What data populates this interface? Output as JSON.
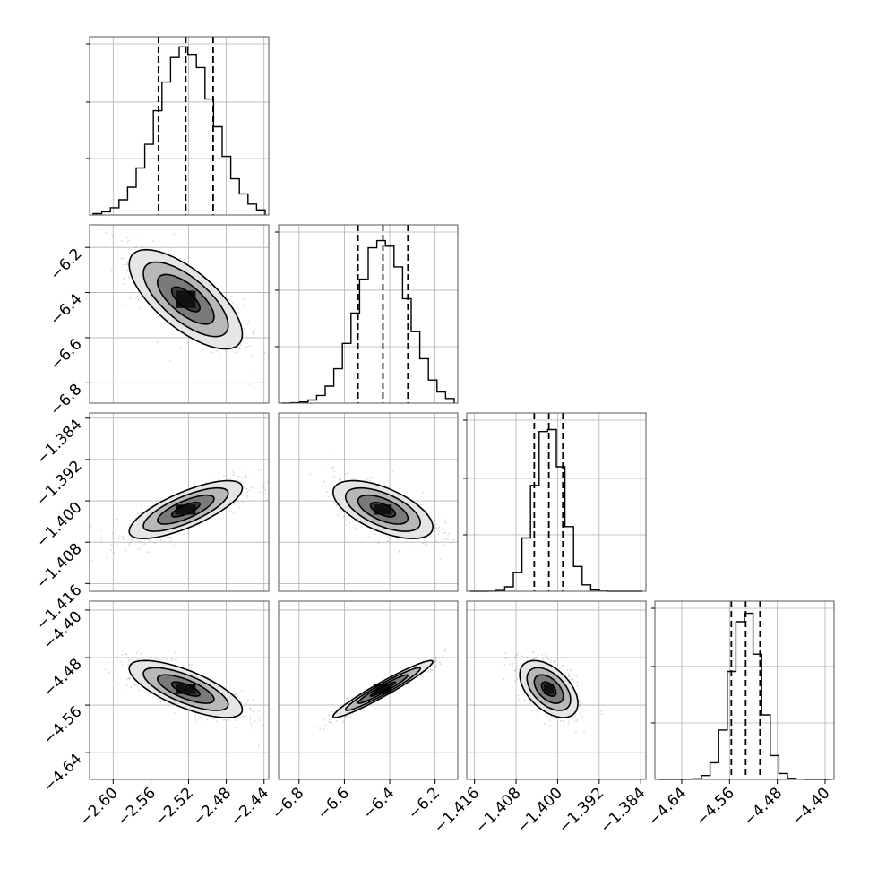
{
  "chart_data": {
    "type": "corner",
    "grid": true,
    "parameters": [
      {
        "index": 0,
        "mean": -2.523,
        "sigma": 0.03,
        "range": [
          -2.625,
          -2.435
        ],
        "ticks": [
          -2.6,
          -2.56,
          -2.52,
          -2.48,
          -2.44
        ],
        "tick_labels": [
          "−2.60",
          "−2.56",
          "−2.52",
          "−2.48",
          "−2.44"
        ],
        "quantiles": [
          -2.552,
          -2.523,
          -2.494
        ]
      },
      {
        "index": 1,
        "mean": -6.43,
        "sigma": 0.11,
        "range": [
          -6.89,
          -6.1
        ],
        "ticks": [
          -6.8,
          -6.6,
          -6.4,
          -6.2
        ],
        "tick_labels": [
          "−6.8",
          "−6.6",
          "−6.4",
          "−6.2"
        ],
        "quantiles": [
          -6.54,
          -6.43,
          -6.32
        ]
      },
      {
        "index": 2,
        "mean": -1.4017,
        "sigma": 0.0028,
        "range": [
          -1.4175,
          -1.383
        ],
        "ticks": [
          -1.416,
          -1.408,
          -1.4,
          -1.392,
          -1.384
        ],
        "tick_labels": [
          "−1.416",
          "−1.408",
          "−1.400",
          "−1.392",
          "−1.384"
        ],
        "quantiles": [
          -1.4045,
          -1.4017,
          -1.399
        ]
      },
      {
        "index": 3,
        "mean": -4.533,
        "sigma": 0.024,
        "range": [
          -4.685,
          -4.385
        ],
        "ticks": [
          -4.64,
          -4.56,
          -4.48,
          -4.4
        ],
        "tick_labels": [
          "−4.64",
          "−4.56",
          "−4.48",
          "−4.40"
        ],
        "quantiles": [
          -4.557,
          -4.533,
          -4.509
        ]
      }
    ],
    "correlations": [
      {
        "pair": [
          0,
          1
        ],
        "rho": -0.7
      },
      {
        "pair": [
          0,
          2
        ],
        "rho": 0.75
      },
      {
        "pair": [
          1,
          2
        ],
        "rho": -0.6
      },
      {
        "pair": [
          0,
          3
        ],
        "rho": -0.72
      },
      {
        "pair": [
          1,
          3
        ],
        "rho": 0.96
      },
      {
        "pair": [
          2,
          3
        ],
        "rho": -0.5
      }
    ],
    "histogram": {
      "bins": 20,
      "style": "step"
    },
    "contour_levels_sigma": [
      0.5,
      1.0,
      1.5,
      2.0
    ]
  }
}
